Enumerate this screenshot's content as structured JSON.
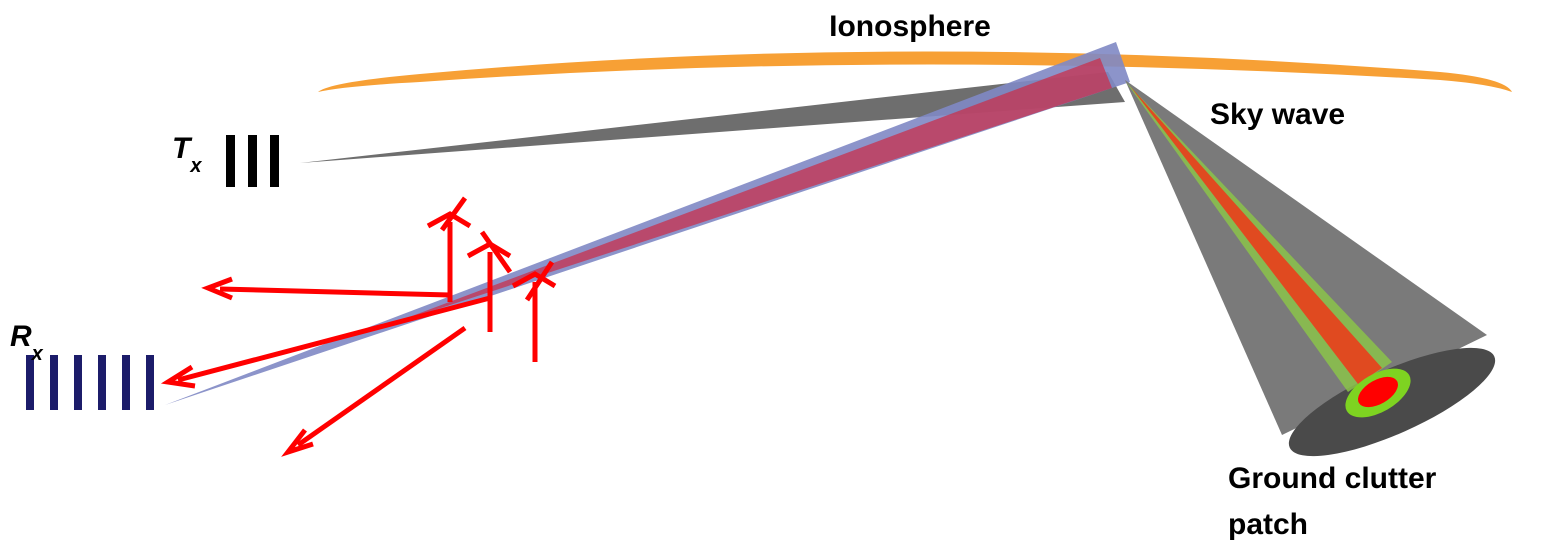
{
  "labels": {
    "ionosphere": "Ionosphere",
    "sky_wave": "Sky wave",
    "tx": {
      "main": "T",
      "sub": "x"
    },
    "rx": {
      "main": "R",
      "sub": "x"
    },
    "ground_clutter": [
      "Ground clutter",
      "patch"
    ]
  }
}
